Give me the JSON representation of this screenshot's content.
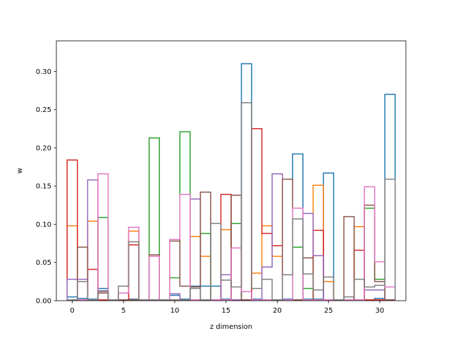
{
  "chart_data": {
    "type": "step",
    "title": "",
    "xlabel": "z dimension",
    "ylabel": "w",
    "xlim": [
      -1.55,
      32.55
    ],
    "ylim": [
      0,
      0.34
    ],
    "xticks": [
      0,
      5,
      10,
      15,
      20,
      25,
      30
    ],
    "yticks": [
      0.0,
      0.05,
      0.1,
      0.15,
      0.2,
      0.25,
      0.3
    ],
    "ytick_labels": [
      "0.00",
      "0.05",
      "0.10",
      "0.15",
      "0.20",
      "0.25",
      "0.30"
    ],
    "legend": "none",
    "grid": false,
    "x": [
      0,
      1,
      2,
      3,
      4,
      5,
      6,
      7,
      8,
      9,
      10,
      11,
      12,
      13,
      14,
      15,
      16,
      17,
      18,
      19,
      20,
      21,
      22,
      23,
      24,
      25,
      26,
      27,
      28,
      29,
      30,
      31
    ],
    "series": [
      {
        "color": "#1f77b4",
        "values": [
          0.005,
          0.003,
          0.002,
          0.016,
          0.001,
          0.001,
          0.002,
          0.001,
          0.001,
          0.001,
          0.007,
          0.002,
          0.019,
          0.019,
          0.019,
          0.002,
          0.001,
          0.31,
          0.002,
          0.001,
          0.001,
          0.002,
          0.192,
          0.002,
          0.002,
          0.167,
          0.001,
          0.001,
          0.001,
          0.001,
          0.003,
          0.27
        ]
      },
      {
        "color": "#ff7f0e",
        "values": [
          0.098,
          0.001,
          0.104,
          0.001,
          0.001,
          0.001,
          0.091,
          0.001,
          0.001,
          0.001,
          0.001,
          0.001,
          0.084,
          0.058,
          0.001,
          0.093,
          0.001,
          0.001,
          0.036,
          0.098,
          0.058,
          0.001,
          0.001,
          0.001,
          0.151,
          0.025,
          0.001,
          0.001,
          0.097,
          0.001,
          0.001,
          0.001
        ]
      },
      {
        "color": "#2ca02c",
        "values": [
          0.001,
          0.001,
          0.001,
          0.109,
          0.001,
          0.001,
          0.001,
          0.001,
          0.213,
          0.001,
          0.03,
          0.221,
          0.001,
          0.088,
          0.001,
          0.001,
          0.101,
          0.001,
          0.001,
          0.001,
          0.001,
          0.001,
          0.07,
          0.016,
          0.001,
          0.001,
          0.001,
          0.001,
          0.001,
          0.121,
          0.028,
          0.001
        ]
      },
      {
        "color": "#d62728",
        "values": [
          0.184,
          0.001,
          0.041,
          0.001,
          0.001,
          0.001,
          0.073,
          0.001,
          0.001,
          0.001,
          0.001,
          0.001,
          0.001,
          0.001,
          0.001,
          0.139,
          0.001,
          0.001,
          0.225,
          0.088,
          0.072,
          0.001,
          0.001,
          0.001,
          0.092,
          0.001,
          0.001,
          0.001,
          0.066,
          0.001,
          0.001,
          0.001
        ]
      },
      {
        "color": "#9467bd",
        "values": [
          0.028,
          0.028,
          0.158,
          0.013,
          0.001,
          0.001,
          0.001,
          0.001,
          0.001,
          0.001,
          0.009,
          0.001,
          0.133,
          0.001,
          0.001,
          0.034,
          0.001,
          0.001,
          0.001,
          0.044,
          0.166,
          0.001,
          0.001,
          0.114,
          0.059,
          0.001,
          0.001,
          0.001,
          0.001,
          0.014,
          0.014,
          0.001
        ]
      },
      {
        "color": "#8c564b",
        "values": [
          0.001,
          0.07,
          0.001,
          0.01,
          0.001,
          0.001,
          0.001,
          0.001,
          0.06,
          0.001,
          0.078,
          0.019,
          0.018,
          0.142,
          0.001,
          0.001,
          0.138,
          0.001,
          0.001,
          0.001,
          0.001,
          0.159,
          0.001,
          0.056,
          0.001,
          0.001,
          0.001,
          0.11,
          0.001,
          0.125,
          0.025,
          0.001
        ]
      },
      {
        "color": "#e377c2",
        "values": [
          0.001,
          0.001,
          0.001,
          0.166,
          0.001,
          0.01,
          0.096,
          0.001,
          0.058,
          0.001,
          0.08,
          0.139,
          0.001,
          0.001,
          0.001,
          0.001,
          0.069,
          0.012,
          0.001,
          0.001,
          0.001,
          0.001,
          0.121,
          0.001,
          0.001,
          0.001,
          0.001,
          0.001,
          0.001,
          0.149,
          0.051,
          0.018
        ]
      },
      {
        "color": "#7f7f7f",
        "values": [
          0.001,
          0.025,
          0.001,
          0.012,
          0.001,
          0.019,
          0.077,
          0.001,
          0.001,
          0.001,
          0.001,
          0.001,
          0.016,
          0.001,
          0.101,
          0.027,
          0.018,
          0.259,
          0.016,
          0.028,
          0.001,
          0.034,
          0.107,
          0.035,
          0.014,
          0.031,
          0.001,
          0.005,
          0.028,
          0.018,
          0.02,
          0.159
        ]
      }
    ]
  }
}
